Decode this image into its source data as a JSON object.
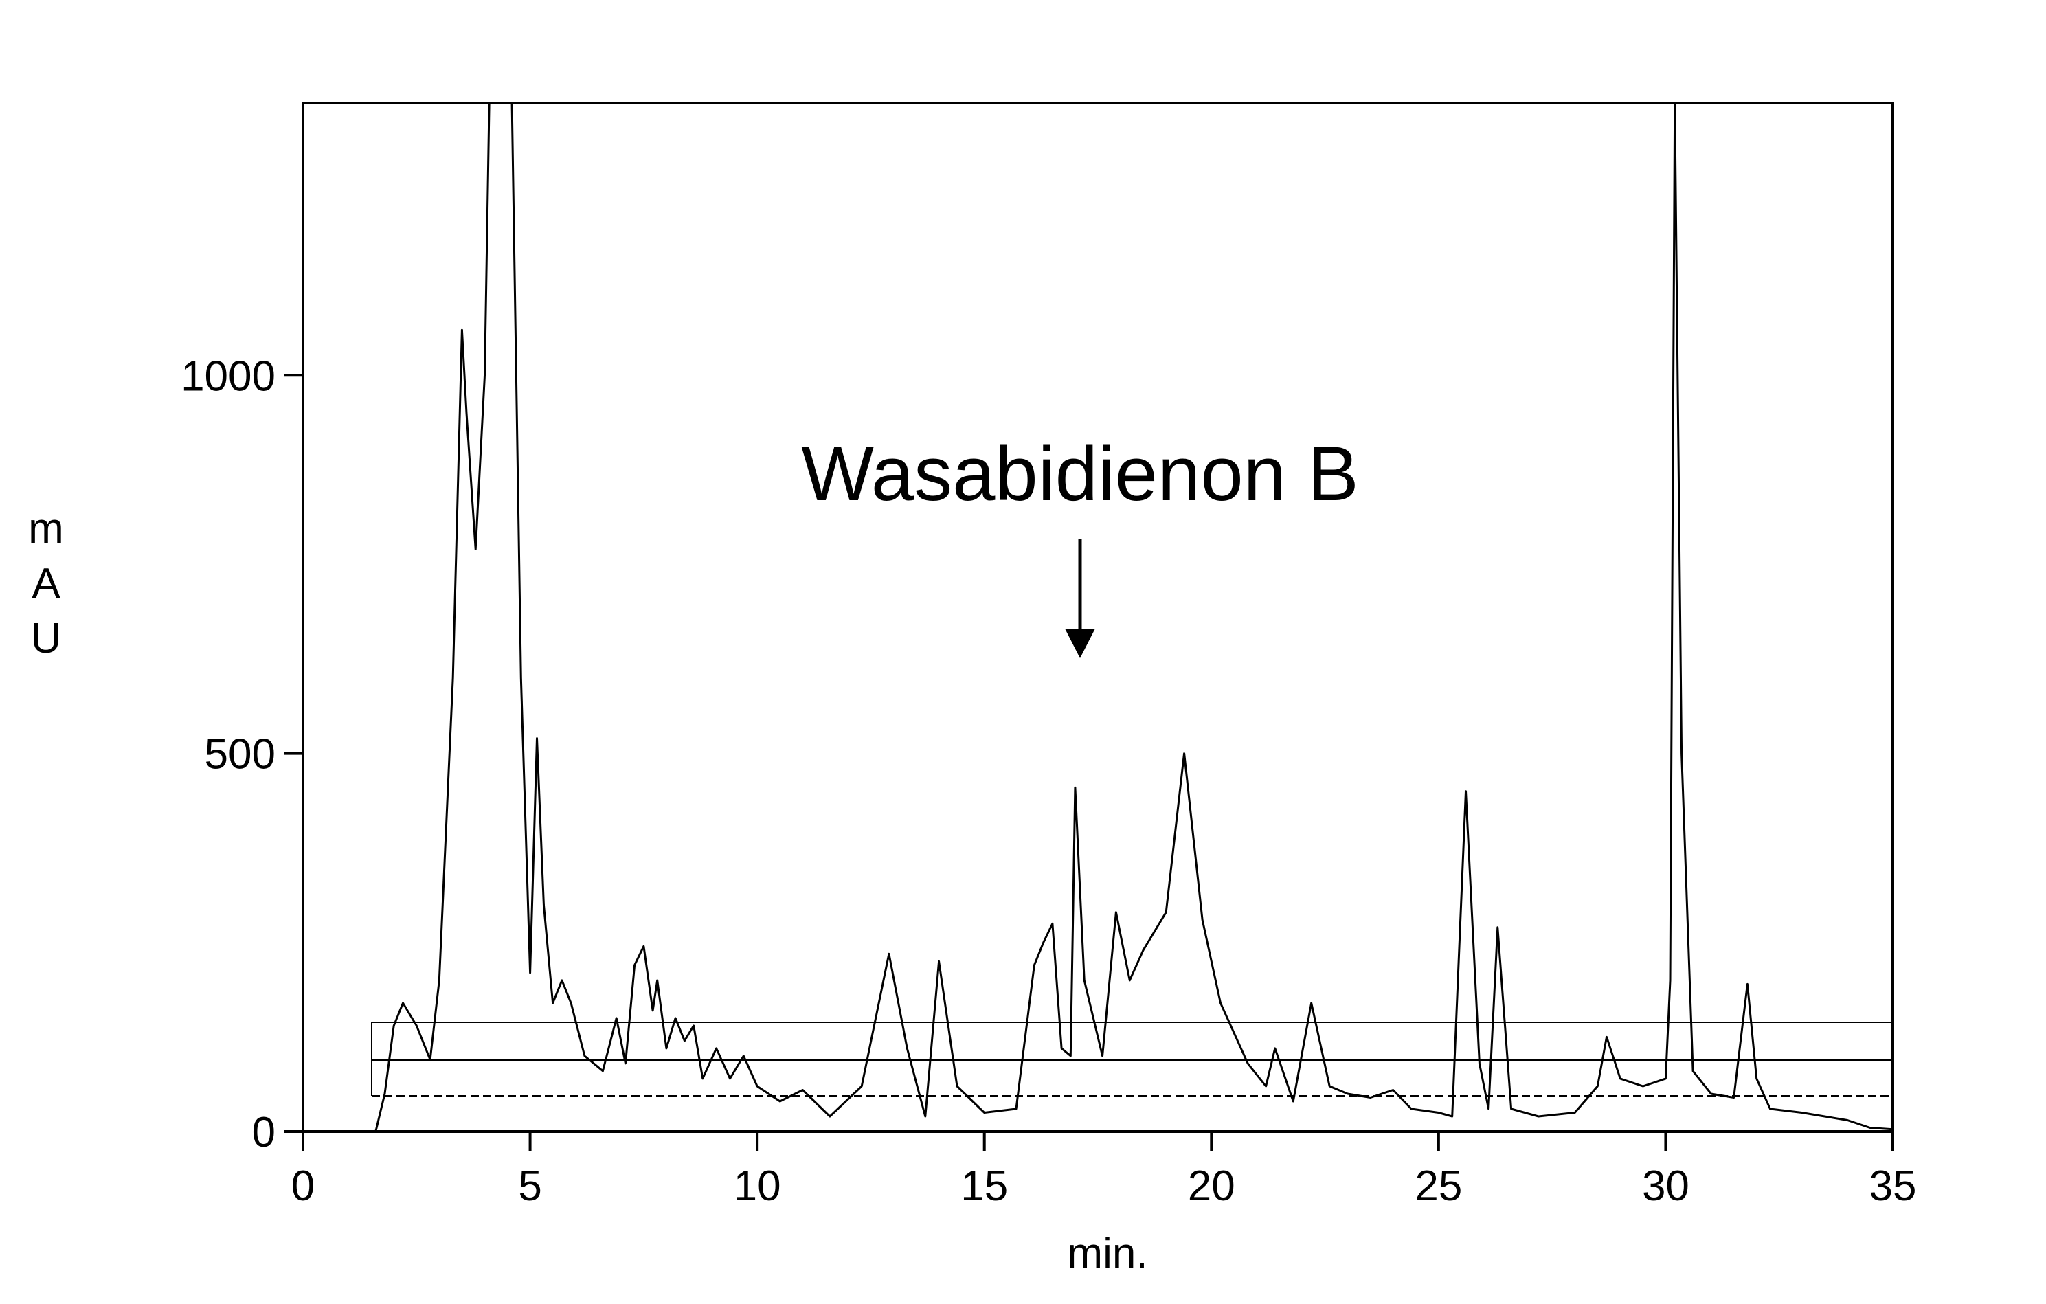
{
  "chart_data": {
    "type": "line",
    "annotation": "Wasabidienon B",
    "xlabel": "min.",
    "ylabel": "mAU",
    "xlim": [
      0,
      35
    ],
    "ylim": [
      0,
      1360
    ],
    "xticks": [
      0,
      5,
      10,
      15,
      20,
      25,
      30,
      35
    ],
    "yticks": [
      0,
      500,
      1000
    ],
    "grid": false,
    "series": [
      {
        "color": "#000000",
        "x": [
          1.6,
          1.8,
          2.0,
          2.2,
          2.5,
          2.8,
          3.0,
          3.3,
          3.5,
          3.6,
          3.8,
          4.0,
          4.1,
          4.6,
          4.8,
          5.0,
          5.15,
          5.3,
          5.5,
          5.7,
          5.9,
          6.2,
          6.6,
          6.9,
          7.1,
          7.3,
          7.5,
          7.7,
          7.8,
          8.0,
          8.2,
          8.4,
          8.6,
          8.8,
          9.1,
          9.4,
          9.7,
          10.0,
          10.5,
          11.0,
          11.6,
          12.3,
          12.9,
          13.3,
          13.7,
          14.0,
          14.4,
          15.0,
          15.7,
          16.1,
          16.3,
          16.5,
          16.7,
          16.9,
          17.0,
          17.2,
          17.6,
          17.9,
          18.2,
          18.5,
          19.0,
          19.4,
          19.8,
          20.2,
          20.8,
          21.2,
          21.4,
          21.8,
          22.2,
          22.6,
          23.0,
          23.5,
          24.0,
          24.4,
          25.0,
          25.3,
          25.6,
          25.9,
          26.1,
          26.3,
          26.6,
          27.2,
          28.0,
          28.5,
          28.7,
          29.0,
          29.5,
          30.0,
          30.1,
          30.2,
          30.35,
          30.6,
          31.0,
          31.5,
          31.8,
          32.0,
          32.3,
          33.0,
          33.5,
          34.0,
          34.5,
          35.0
        ],
        "values": [
          0,
          50,
          140,
          170,
          140,
          95,
          200,
          600,
          1060,
          950,
          770,
          1000,
          1360,
          1360,
          600,
          210,
          520,
          300,
          170,
          200,
          170,
          100,
          80,
          150,
          90,
          220,
          245,
          160,
          200,
          110,
          150,
          120,
          140,
          70,
          110,
          70,
          100,
          60,
          40,
          55,
          20,
          60,
          235,
          110,
          20,
          225,
          60,
          25,
          30,
          220,
          250,
          275,
          110,
          100,
          455,
          200,
          100,
          290,
          200,
          240,
          290,
          500,
          280,
          170,
          90,
          60,
          110,
          40,
          170,
          60,
          50,
          45,
          55,
          30,
          25,
          20,
          450,
          90,
          30,
          270,
          30,
          20,
          25,
          60,
          125,
          70,
          60,
          70,
          200,
          1360,
          500,
          80,
          50,
          45,
          195,
          70,
          30,
          25,
          20,
          15,
          5,
          3
        ]
      }
    ]
  }
}
